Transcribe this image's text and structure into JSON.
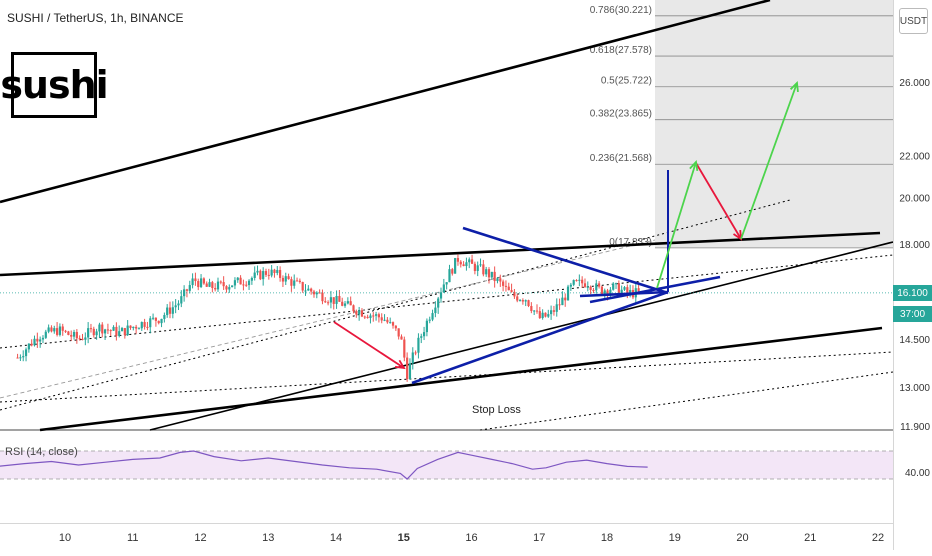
{
  "chart_title": "SUSHI / TetherUS, 1h, BINANCE",
  "logo_text": "sushi",
  "currency_badge": "USDT",
  "rsi_label": "RSI (14, close)",
  "annotation_stop_loss": "Stop Loss",
  "last_price_label": "16.100",
  "countdown_label": "37:00",
  "colors": {
    "up": "#26a69a",
    "down": "#ef5350",
    "trendline_black": "#000000",
    "triangle_blue": "#0d1fa8",
    "arrow_red": "#e8173c",
    "arrow_green": "#4cd44c",
    "fib_zone": "#e6e6e6",
    "rsi_band": "#f3e6f7",
    "rsi_line": "#7e57c2"
  },
  "chart_data": {
    "type": "candlestick",
    "title": "SUSHI / TetherUS, 1h, BINANCE",
    "y_scale": "log",
    "ylim": [
      11.9,
      31
    ],
    "price_axis_ticks": [
      "26.000",
      "22.000",
      "20.000",
      "18.000",
      "16.100",
      "14.500",
      "13.000",
      "11.900",
      "40.00"
    ],
    "time_axis_ticks": [
      "10",
      "11",
      "12",
      "13",
      "14",
      "15",
      "16",
      "17",
      "18",
      "19",
      "20",
      "21",
      "22"
    ],
    "fibonacci_levels": [
      {
        "ratio": "0.786",
        "price": 30.221,
        "label": "0.786(30.221)"
      },
      {
        "ratio": "0.618",
        "price": 27.578,
        "label": "0.618(27.578)"
      },
      {
        "ratio": "0.5",
        "price": 25.722,
        "label": "0.5(25.722)"
      },
      {
        "ratio": "0.382",
        "price": 23.865,
        "label": "0.382(23.865)"
      },
      {
        "ratio": "0.236",
        "price": 21.568,
        "label": "0.236(21.568)"
      },
      {
        "ratio": "0",
        "price": 17.833,
        "label": "0(17.833)"
      }
    ],
    "last_price": 16.1,
    "price_path": [
      [
        9.3,
        13.9
      ],
      [
        9.6,
        14.6
      ],
      [
        9.9,
        14.8
      ],
      [
        10.2,
        14.5
      ],
      [
        10.5,
        14.9
      ],
      [
        10.8,
        14.7
      ],
      [
        11.1,
        15.0
      ],
      [
        11.4,
        15.2
      ],
      [
        11.7,
        15.8
      ],
      [
        11.9,
        16.6
      ],
      [
        12.1,
        16.3
      ],
      [
        12.4,
        16.4
      ],
      [
        12.7,
        16.6
      ],
      [
        13.0,
        16.9
      ],
      [
        13.2,
        16.7
      ],
      [
        13.5,
        16.3
      ],
      [
        13.8,
        16.0
      ],
      [
        14.1,
        15.7
      ],
      [
        14.4,
        15.4
      ],
      [
        14.7,
        15.2
      ],
      [
        14.95,
        14.6
      ],
      [
        15.05,
        13.4
      ],
      [
        15.2,
        14.3
      ],
      [
        15.4,
        15.4
      ],
      [
        15.6,
        16.5
      ],
      [
        15.8,
        17.4
      ],
      [
        15.95,
        17.2
      ],
      [
        16.2,
        16.9
      ],
      [
        16.4,
        16.5
      ],
      [
        16.6,
        16.0
      ],
      [
        16.8,
        15.9
      ],
      [
        17.0,
        15.2
      ],
      [
        17.15,
        15.3
      ],
      [
        17.3,
        15.7
      ],
      [
        17.5,
        16.4
      ],
      [
        17.7,
        16.5
      ],
      [
        17.9,
        16.2
      ],
      [
        18.1,
        16.3
      ],
      [
        18.3,
        16.1
      ],
      [
        18.5,
        16.1
      ]
    ],
    "rsi_path": [
      [
        9.0,
        48
      ],
      [
        9.4,
        52
      ],
      [
        9.8,
        55
      ],
      [
        10.2,
        50
      ],
      [
        10.6,
        54
      ],
      [
        11.0,
        58
      ],
      [
        11.4,
        60
      ],
      [
        11.7,
        68
      ],
      [
        11.9,
        70
      ],
      [
        12.2,
        62
      ],
      [
        12.6,
        56
      ],
      [
        13.0,
        60
      ],
      [
        13.4,
        55
      ],
      [
        13.8,
        50
      ],
      [
        14.2,
        46
      ],
      [
        14.6,
        44
      ],
      [
        14.95,
        38
      ],
      [
        15.05,
        30
      ],
      [
        15.2,
        45
      ],
      [
        15.5,
        58
      ],
      [
        15.8,
        68
      ],
      [
        16.0,
        64
      ],
      [
        16.3,
        58
      ],
      [
        16.6,
        52
      ],
      [
        16.9,
        44
      ],
      [
        17.1,
        46
      ],
      [
        17.4,
        54
      ],
      [
        17.7,
        57
      ],
      [
        18.0,
        52
      ],
      [
        18.3,
        48
      ],
      [
        18.6,
        47
      ]
    ]
  }
}
